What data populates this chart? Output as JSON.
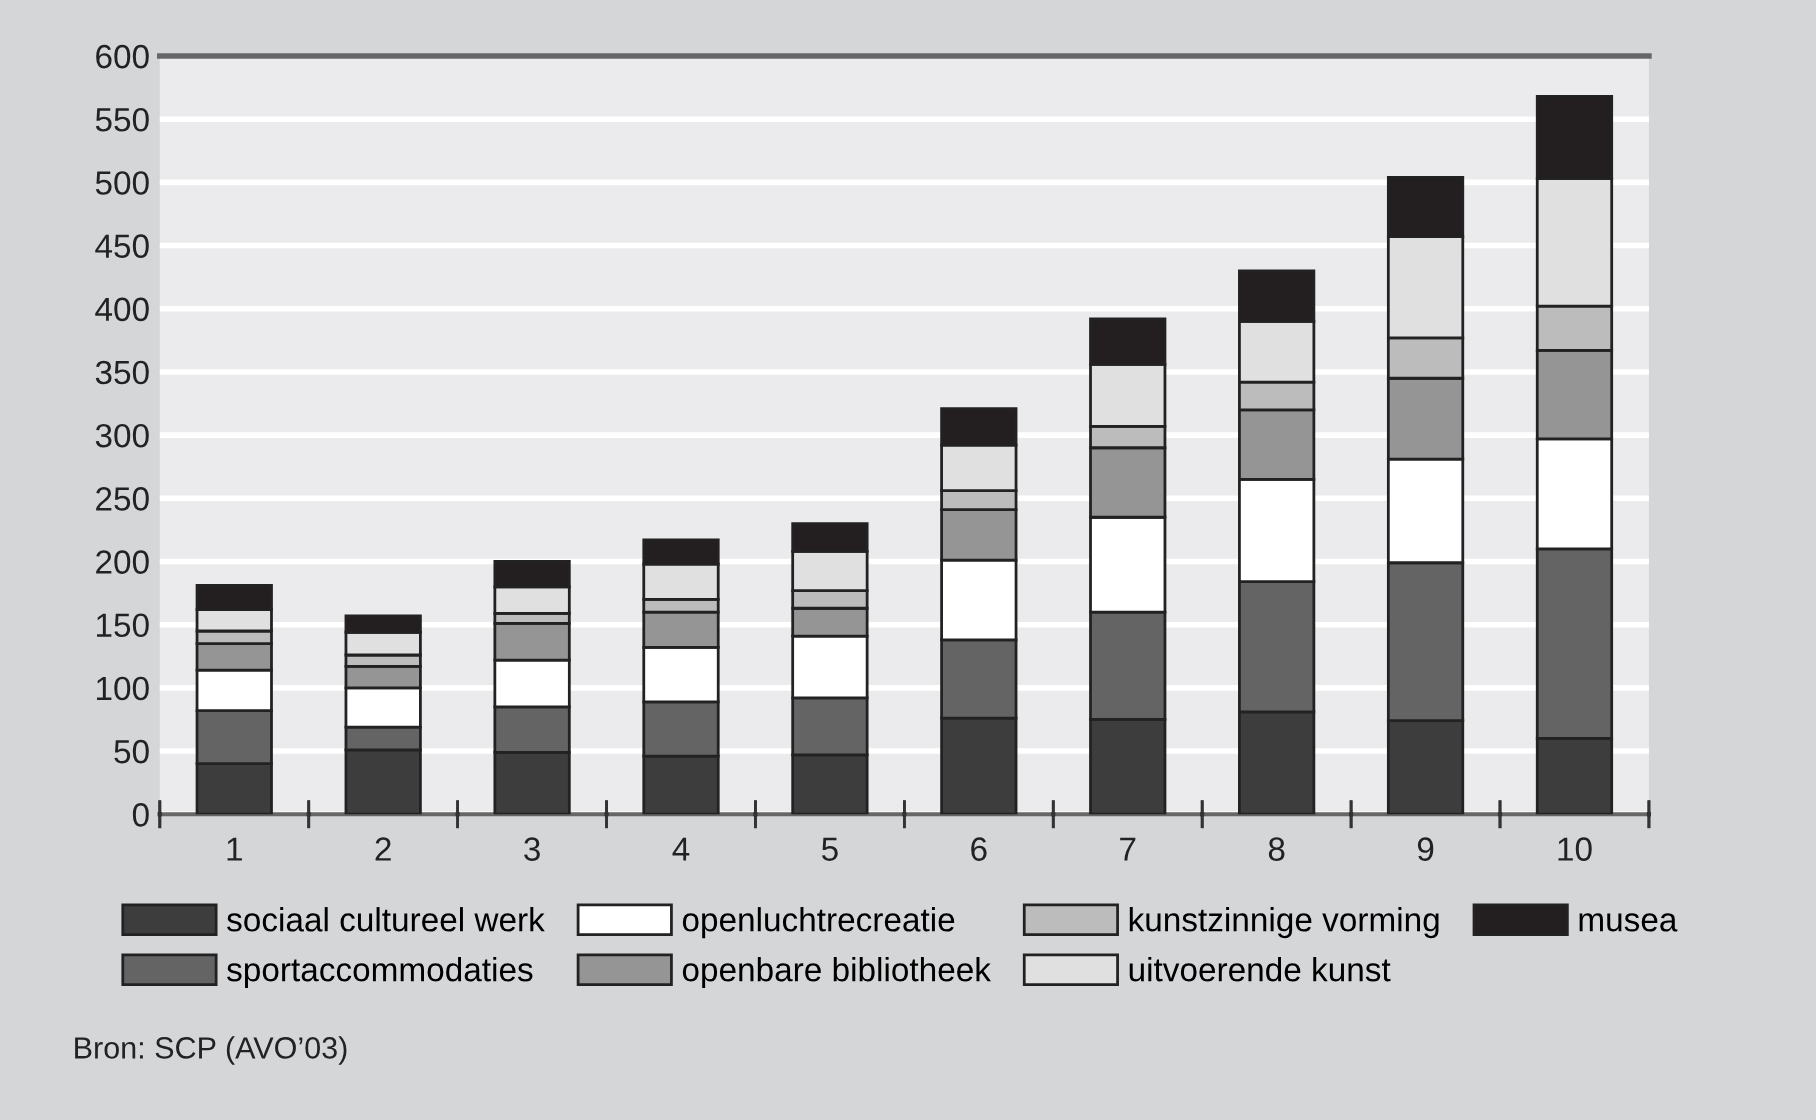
{
  "chart_data": {
    "type": "bar",
    "stacked": true,
    "categories": [
      "1",
      "2",
      "3",
      "4",
      "5",
      "6",
      "7",
      "8",
      "9",
      "10"
    ],
    "series": [
      {
        "name": "sociaal cultureel werk",
        "color": "#3d3d3d",
        "values": [
          40,
          51,
          49,
          46,
          47,
          76,
          75,
          81,
          74,
          60
        ]
      },
      {
        "name": "sportaccommodaties",
        "color": "#646464",
        "values": [
          42,
          18,
          36,
          43,
          45,
          62,
          85,
          103,
          125,
          150
        ]
      },
      {
        "name": "openluchtrecreatie",
        "color": "#ffffff",
        "values": [
          32,
          31,
          37,
          43,
          49,
          63,
          75,
          81,
          82,
          87
        ]
      },
      {
        "name": "openbare bibliotheek",
        "color": "#959595",
        "values": [
          21,
          17,
          29,
          28,
          22,
          40,
          55,
          55,
          64,
          70
        ]
      },
      {
        "name": "kunstzinnige vorming",
        "color": "#bcbcbc",
        "values": [
          10,
          9,
          8,
          10,
          14,
          15,
          17,
          22,
          32,
          35
        ]
      },
      {
        "name": "uitvoerende kunst",
        "color": "#e0e0e0",
        "values": [
          17,
          18,
          21,
          28,
          31,
          36,
          49,
          48,
          80,
          101
        ]
      },
      {
        "name": "musea",
        "color": "#231f20",
        "values": [
          19,
          13,
          20,
          19,
          22,
          29,
          36,
          40,
          47,
          65
        ]
      }
    ],
    "ylim": [
      0,
      600
    ],
    "yticks": [
      0,
      50,
      100,
      150,
      200,
      250,
      300,
      350,
      400,
      450,
      500,
      550,
      600
    ],
    "grid": "y",
    "legend": "bottom",
    "annotations": [
      "Bron: SCP (AVO’03)"
    ]
  }
}
